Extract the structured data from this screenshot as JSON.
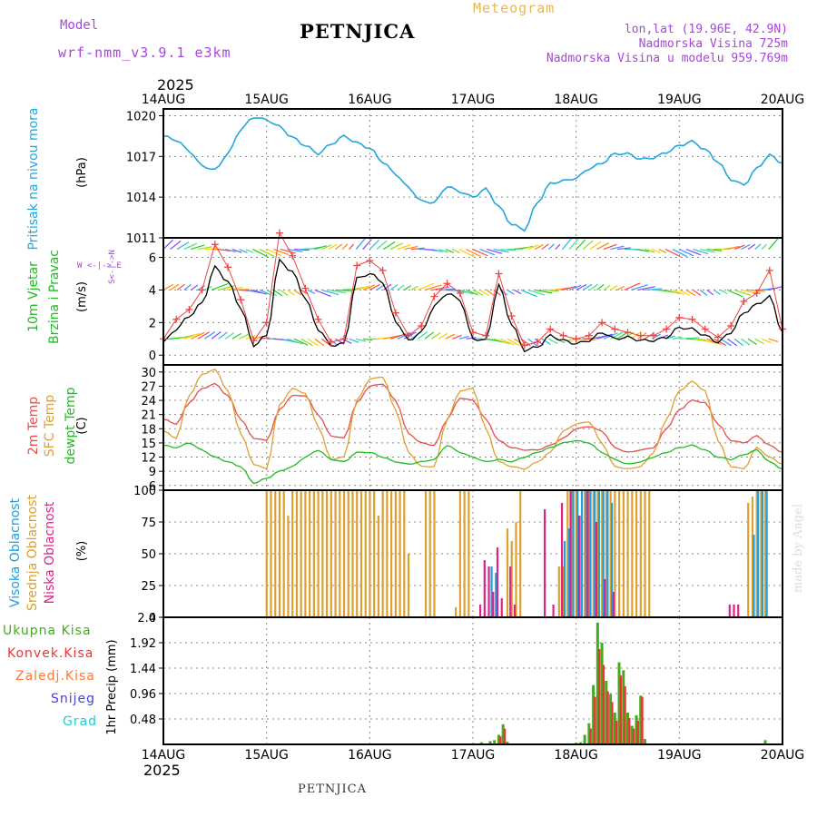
{
  "header": {
    "model_label": "Model",
    "model_name": "wrf-nmm_v3.9.1 e3km",
    "station": "PETNJICA",
    "meteogram": "Meteogram",
    "lonlat": "lon,lat (19.96E, 42.9N)",
    "elevation": "Nadmorska Visina 725m",
    "model_elevation": "Nadmorska Visina u modelu 959.769m",
    "year_top": "2025",
    "year_bottom": "2025",
    "footer_station": "PETNJICA",
    "watermark": "made by Angel"
  },
  "colors": {
    "pressure": "#22a7dd",
    "wind_speed": "#000000",
    "wind_gust": "#ee4444",
    "temp_2m": "#e84c4c",
    "temp_sfc": "#e0a030",
    "dewpoint": "#22bb22",
    "cloud_high": "#1f9fe0",
    "cloud_mid": "#dda030",
    "cloud_low": "#dd2288",
    "precip_total": "#44aa22",
    "precip_conv": "#ee3333",
    "precip_frozen": "#ff7733",
    "precip_snow": "#4444dd",
    "precip_hail": "#22cccc",
    "wind_legend": "#aa44dd"
  },
  "panel_labels": {
    "pressure_title": "Pritisak na nivou mora",
    "pressure_unit": "(hPa)",
    "wind_title1": "10m Vjetar",
    "wind_title2": "Brzina i Pravac",
    "wind_unit": "(m/s)",
    "temp_title1": "2m Temp",
    "temp_title2": "SFC Temp",
    "temp_title3": "dewpt Temp",
    "temp_unit": "(C)",
    "cloud_title1": "Visoka Oblacnost",
    "cloud_title2": "Srednja Oblacnost",
    "cloud_title3": "Niska Oblacnost",
    "cloud_unit": "(%)",
    "precip_unit": "1hr Precip (mm)",
    "precip_legend": [
      "Ukupna Kisa",
      "Konvek.Kisa",
      "Zaledj.Kisa",
      "Snijeg",
      "Grad"
    ],
    "wind_legend_h": "W <-|-> E",
    "wind_legend_v": "S<-|->N"
  },
  "chart_data": [
    {
      "type": "line",
      "title": "Pritisak na nivou mora",
      "ylabel": "(hPa)",
      "ylim": [
        1011,
        1020.5
      ],
      "yticks": [
        1011,
        1014,
        1017,
        1020
      ],
      "x_categories": [
        "14AUG",
        "15AUG",
        "16AUG",
        "17AUG",
        "18AUG",
        "19AUG",
        "20AUG"
      ],
      "x_hours": [
        0,
        3,
        6,
        9,
        12,
        15,
        18,
        21,
        24,
        27,
        30,
        33,
        36,
        39,
        42,
        45,
        48,
        51,
        54,
        57,
        60,
        63,
        66,
        69,
        72,
        75,
        78,
        81,
        84,
        87,
        90,
        93,
        96,
        99,
        102,
        105,
        108,
        111,
        114,
        117,
        120,
        123,
        126,
        129,
        132,
        135,
        138,
        141,
        144
      ],
      "series": [
        {
          "name": "MSLP",
          "values": [
            1018.5,
            1018.2,
            1017.4,
            1016.3,
            1016.0,
            1017.2,
            1019.0,
            1019.9,
            1019.7,
            1019.2,
            1018.4,
            1017.8,
            1017.2,
            1017.9,
            1018.5,
            1018.0,
            1017.6,
            1016.6,
            1015.7,
            1014.7,
            1013.7,
            1013.6,
            1014.8,
            1014.4,
            1014.0,
            1014.6,
            1013.3,
            1012.0,
            1011.6,
            1013.6,
            1015.0,
            1015.2,
            1015.4,
            1016.1,
            1016.5,
            1017.2,
            1017.2,
            1016.8,
            1016.9,
            1017.3,
            1017.8,
            1018.1,
            1017.5,
            1016.6,
            1015.3,
            1014.9,
            1016.1,
            1017.1,
            1016.5
          ]
        }
      ]
    },
    {
      "type": "line",
      "title": "10m Vjetar Brzina i Pravac",
      "ylabel": "(m/s)",
      "ylim": [
        -0.6,
        7.2
      ],
      "yticks": [
        0,
        2,
        4,
        6
      ],
      "x_categories": [
        "14AUG",
        "15AUG",
        "16AUG",
        "17AUG",
        "18AUG",
        "19AUG",
        "20AUG"
      ],
      "x_hours": [
        0,
        3,
        6,
        9,
        12,
        15,
        18,
        21,
        24,
        27,
        30,
        33,
        36,
        39,
        42,
        45,
        48,
        51,
        54,
        57,
        60,
        63,
        66,
        69,
        72,
        75,
        78,
        81,
        84,
        87,
        90,
        93,
        96,
        99,
        102,
        105,
        108,
        111,
        114,
        117,
        120,
        123,
        126,
        129,
        132,
        135,
        138,
        141,
        144
      ],
      "series": [
        {
          "name": "Brzina",
          "values": [
            0.8,
            1.6,
            2.4,
            3.2,
            5.4,
            4.5,
            2.9,
            0.6,
            1.2,
            5.8,
            5.1,
            3.5,
            1.6,
            0.6,
            0.7,
            4.7,
            5.0,
            4.5,
            2.1,
            0.9,
            1.4,
            3.0,
            3.8,
            3.4,
            1.0,
            0.9,
            4.3,
            1.9,
            0.3,
            0.5,
            1.2,
            0.9,
            0.7,
            0.9,
            1.4,
            1.0,
            1.1,
            0.9,
            0.9,
            1.1,
            1.7,
            1.6,
            1.2,
            0.8,
            1.4,
            2.6,
            3.1,
            3.6,
            1.4
          ]
        },
        {
          "name": "Udari",
          "values": [
            1.0,
            2.2,
            2.8,
            4.0,
            6.8,
            5.4,
            3.4,
            0.9,
            2.0,
            7.5,
            6.1,
            4.1,
            2.2,
            0.8,
            1.0,
            5.5,
            5.8,
            5.2,
            2.6,
            1.2,
            1.8,
            3.6,
            4.4,
            3.8,
            1.4,
            1.2,
            5.0,
            2.4,
            0.6,
            0.8,
            1.6,
            1.2,
            1.0,
            1.2,
            2.0,
            1.6,
            1.4,
            1.2,
            1.2,
            1.6,
            2.3,
            2.2,
            1.6,
            1.1,
            1.8,
            3.3,
            3.8,
            5.2,
            1.6
          ]
        }
      ],
      "wind_arrow_rows": [
        1,
        4,
        6.5
      ]
    },
    {
      "type": "line",
      "title": "2m Temp / SFC Temp / dewpt Temp",
      "ylabel": "(C)",
      "ylim": [
        5,
        31.5
      ],
      "yticks": [
        6,
        9,
        12,
        15,
        18,
        21,
        24,
        27,
        30
      ],
      "x_categories": [
        "14AUG",
        "15AUG",
        "16AUG",
        "17AUG",
        "18AUG",
        "19AUG",
        "20AUG"
      ],
      "x_hours": [
        0,
        3,
        6,
        9,
        12,
        15,
        18,
        21,
        24,
        27,
        30,
        33,
        36,
        39,
        42,
        45,
        48,
        51,
        54,
        57,
        60,
        63,
        66,
        69,
        72,
        75,
        78,
        81,
        84,
        87,
        90,
        93,
        96,
        99,
        102,
        105,
        108,
        111,
        114,
        117,
        120,
        123,
        126,
        129,
        132,
        135,
        138,
        141,
        144
      ],
      "series": [
        {
          "name": "2m Temp",
          "values": [
            20.0,
            19.0,
            23.5,
            26.5,
            27.5,
            25.0,
            20.0,
            16.0,
            15.5,
            22.0,
            25.0,
            25.0,
            21.0,
            16.5,
            16.0,
            23.5,
            27.0,
            27.5,
            24.0,
            17.0,
            15.0,
            14.5,
            20.0,
            24.5,
            24.0,
            20.0,
            15.5,
            14.0,
            13.5,
            13.5,
            14.5,
            16.0,
            18.0,
            18.5,
            17.5,
            14.0,
            13.0,
            13.5,
            14.0,
            18.0,
            22.0,
            24.0,
            23.5,
            19.0,
            15.5,
            15.0,
            16.5,
            14.5,
            13.0
          ]
        },
        {
          "name": "SFC Temp",
          "values": [
            17.5,
            16.0,
            25.0,
            29.5,
            30.5,
            26.0,
            17.0,
            10.5,
            9.5,
            23.0,
            26.5,
            25.5,
            18.5,
            11.5,
            12.0,
            24.0,
            28.5,
            29.0,
            22.0,
            13.0,
            10.0,
            10.0,
            20.0,
            26.0,
            26.5,
            18.0,
            11.0,
            10.0,
            9.5,
            11.0,
            13.0,
            17.5,
            19.0,
            19.5,
            15.0,
            10.0,
            9.5,
            10.0,
            13.0,
            20.0,
            26.0,
            28.0,
            26.0,
            15.5,
            10.0,
            9.5,
            14.0,
            12.0,
            10.5
          ]
        },
        {
          "name": "dewpt Temp",
          "values": [
            14.5,
            14.0,
            15.0,
            13.5,
            12.0,
            11.0,
            10.0,
            6.5,
            7.5,
            9.0,
            10.0,
            12.0,
            13.5,
            11.5,
            11.0,
            13.0,
            13.0,
            12.0,
            11.0,
            10.5,
            11.0,
            11.5,
            14.5,
            13.0,
            12.0,
            11.0,
            11.5,
            11.0,
            12.0,
            13.0,
            14.0,
            15.0,
            15.5,
            15.0,
            13.0,
            11.5,
            10.5,
            11.0,
            12.0,
            13.0,
            14.0,
            14.5,
            13.5,
            12.0,
            11.5,
            12.5,
            13.5,
            11.0,
            9.5
          ]
        }
      ]
    },
    {
      "type": "bar",
      "title": "Visoka / Srednja / Niska Oblacnost",
      "ylabel": "(%)",
      "ylim": [
        0,
        100
      ],
      "yticks": [
        0,
        25,
        50,
        75,
        100
      ],
      "x_categories": [
        "14AUG",
        "15AUG",
        "16AUG",
        "17AUG",
        "18AUG",
        "19AUG",
        "20AUG"
      ],
      "series": [
        {
          "name": "Srednja Oblacnost",
          "hours": [
            24,
            25,
            26,
            27,
            28,
            29,
            30,
            31,
            32,
            33,
            34,
            35,
            36,
            37,
            38,
            39,
            40,
            41,
            42,
            43,
            44,
            45,
            46,
            47,
            48,
            49,
            50,
            51,
            52,
            53,
            54,
            55,
            56,
            57,
            61,
            62,
            63,
            68,
            69,
            70,
            71,
            80,
            81,
            82,
            83,
            92,
            93,
            94,
            95,
            96,
            97,
            98,
            99,
            100,
            101,
            102,
            103,
            104,
            105,
            106,
            107,
            108,
            109,
            110,
            111,
            112,
            113,
            136,
            137,
            138,
            139,
            140
          ],
          "values": [
            100,
            100,
            100,
            100,
            100,
            80,
            100,
            100,
            100,
            100,
            100,
            100,
            100,
            100,
            100,
            100,
            100,
            100,
            100,
            100,
            100,
            100,
            100,
            100,
            100,
            100,
            80,
            100,
            100,
            100,
            100,
            100,
            100,
            50,
            100,
            100,
            100,
            8,
            100,
            100,
            100,
            70,
            60,
            75,
            100,
            40,
            40,
            100,
            100,
            100,
            80,
            100,
            100,
            100,
            100,
            100,
            100,
            100,
            100,
            100,
            100,
            100,
            100,
            100,
            100,
            100,
            100,
            90,
            95,
            100,
            100,
            100
          ]
        },
        {
          "name": "Visoka Oblacnost",
          "hours": [
            76,
            77,
            93,
            94,
            95,
            96,
            97,
            98,
            99,
            100,
            101,
            102,
            103,
            104,
            137,
            138,
            139,
            140
          ],
          "values": [
            40,
            35,
            60,
            70,
            100,
            100,
            100,
            100,
            100,
            100,
            100,
            100,
            100,
            90,
            65,
            100,
            100,
            100
          ]
        },
        {
          "name": "Niska Oblacnost",
          "hours": [
            74,
            75,
            76,
            77,
            78,
            79,
            81,
            82,
            89,
            91,
            93,
            95,
            97,
            99,
            101,
            103,
            105,
            132,
            133,
            134
          ],
          "values": [
            10,
            45,
            40,
            20,
            55,
            15,
            40,
            10,
            85,
            10,
            90,
            100,
            80,
            100,
            75,
            30,
            20,
            10,
            10,
            10
          ]
        }
      ]
    },
    {
      "type": "bar",
      "title": "1hr Precip",
      "ylabel": "1hr Precip (mm)",
      "ylim": [
        0,
        2.4
      ],
      "yticks": [
        0.48,
        0.96,
        1.44,
        1.92,
        2.4
      ],
      "x_categories": [
        "14AUG",
        "15AUG",
        "16AUG",
        "17AUG",
        "18AUG",
        "19AUG",
        "20AUG"
      ],
      "series": [
        {
          "name": "Ukupna Kisa",
          "hours": [
            72,
            74,
            76,
            77,
            78,
            79,
            80,
            94,
            96,
            97,
            98,
            99,
            100,
            101,
            102,
            103,
            104,
            105,
            106,
            107,
            108,
            109,
            110,
            111,
            112,
            140
          ],
          "values": [
            0.02,
            0.04,
            0.06,
            0.08,
            0.18,
            0.38,
            0.05,
            0.02,
            0.03,
            0.04,
            0.18,
            0.4,
            1.12,
            2.3,
            1.92,
            1.2,
            0.95,
            0.6,
            1.55,
            1.4,
            0.6,
            0.35,
            0.55,
            0.92,
            0.1,
            0.08
          ]
        },
        {
          "name": "Konvek.Kisa",
          "hours": [
            78,
            79,
            99,
            100,
            101,
            102,
            103,
            104,
            105,
            106,
            107,
            108,
            109,
            110,
            111
          ],
          "values": [
            0.15,
            0.3,
            0.3,
            0.9,
            1.8,
            1.5,
            1.0,
            0.8,
            0.45,
            1.3,
            1.1,
            0.5,
            0.3,
            0.45,
            0.9
          ]
        }
      ]
    }
  ]
}
